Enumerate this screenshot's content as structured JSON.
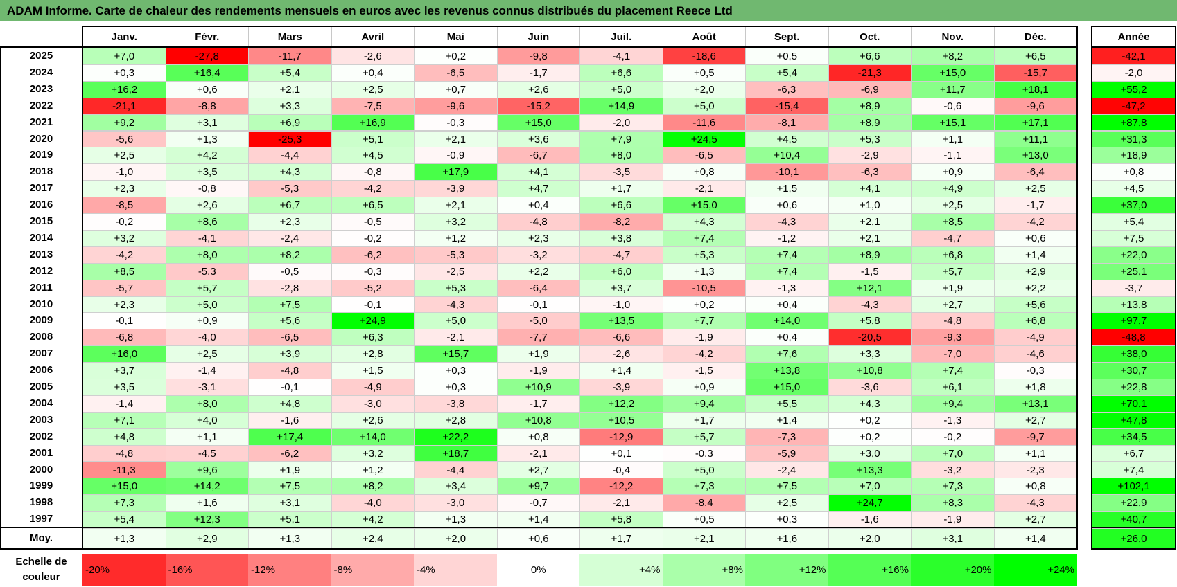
{
  "title": "ADAM Informe. Carte de chaleur des rendements mensuels en euros avec les revenus connus distribués du placement Reece Ltd",
  "chart_data": {
    "type": "heatmap",
    "columns": [
      "Janv.",
      "Févr.",
      "Mars",
      "Avril",
      "Mai",
      "Juin",
      "Juil.",
      "Août",
      "Sept.",
      "Oct.",
      "Nov.",
      "Déc."
    ],
    "annual_header": "Année",
    "rows": [
      {
        "year": "2025",
        "values": [
          "+7,0",
          "-27,8",
          "-11,7",
          "-2,6",
          "+0,2",
          "-9,8",
          "-4,1",
          "-18,6",
          "+0,5",
          "+6,6",
          "+8,2",
          "+6,5"
        ],
        "annual": "-42,1"
      },
      {
        "year": "2024",
        "values": [
          "+0,3",
          "+16,4",
          "+5,4",
          "+0,4",
          "-6,5",
          "-1,7",
          "+6,6",
          "+0,5",
          "+5,4",
          "-21,3",
          "+15,0",
          "-15,7"
        ],
        "annual": "-2,0"
      },
      {
        "year": "2023",
        "values": [
          "+16,2",
          "+0,6",
          "+2,1",
          "+2,5",
          "+0,7",
          "+2,6",
          "+5,0",
          "+2,0",
          "-6,3",
          "-6,9",
          "+11,7",
          "+18,1"
        ],
        "annual": "+55,2"
      },
      {
        "year": "2022",
        "values": [
          "-21,1",
          "-8,8",
          "+3,3",
          "-7,5",
          "-9,6",
          "-15,2",
          "+14,9",
          "+5,0",
          "-15,4",
          "+8,9",
          "-0,6",
          "-9,6"
        ],
        "annual": "-47,2"
      },
      {
        "year": "2021",
        "values": [
          "+9,2",
          "+3,1",
          "+6,9",
          "+16,9",
          "-0,3",
          "+15,0",
          "-2,0",
          "-11,6",
          "-8,1",
          "+8,9",
          "+15,1",
          "+17,1"
        ],
        "annual": "+87,8"
      },
      {
        "year": "2020",
        "values": [
          "-5,6",
          "+1,3",
          "-25,3",
          "+5,1",
          "+2,1",
          "+3,6",
          "+7,9",
          "+24,5",
          "+4,5",
          "+5,3",
          "+1,1",
          "+11,1"
        ],
        "annual": "+31,3"
      },
      {
        "year": "2019",
        "values": [
          "+2,5",
          "+4,2",
          "-4,4",
          "+4,5",
          "-0,9",
          "-6,7",
          "+8,0",
          "-6,5",
          "+10,4",
          "-2,9",
          "-1,1",
          "+13,0"
        ],
        "annual": "+18,9"
      },
      {
        "year": "2018",
        "values": [
          "-1,0",
          "+3,5",
          "+4,3",
          "-0,8",
          "+17,9",
          "+4,1",
          "-3,5",
          "+0,8",
          "-10,1",
          "-6,3",
          "+0,9",
          "-6,4"
        ],
        "annual": "+0,8"
      },
      {
        "year": "2017",
        "values": [
          "+2,3",
          "-0,8",
          "-5,3",
          "-4,2",
          "-3,9",
          "+4,7",
          "+1,7",
          "-2,1",
          "+1,5",
          "+4,1",
          "+4,9",
          "+2,5"
        ],
        "annual": "+4,5"
      },
      {
        "year": "2016",
        "values": [
          "-8,5",
          "+2,6",
          "+6,7",
          "+6,5",
          "+2,1",
          "+0,4",
          "+6,6",
          "+15,0",
          "+0,6",
          "+1,0",
          "+2,5",
          "-1,7"
        ],
        "annual": "+37,0"
      },
      {
        "year": "2015",
        "values": [
          "-0,2",
          "+8,6",
          "+2,3",
          "-0,5",
          "+3,2",
          "-4,8",
          "-8,2",
          "+4,3",
          "-4,3",
          "+2,1",
          "+8,5",
          "-4,2"
        ],
        "annual": "+5,4"
      },
      {
        "year": "2014",
        "values": [
          "+3,2",
          "-4,1",
          "-2,4",
          "-0,2",
          "+1,2",
          "+2,3",
          "+3,8",
          "+7,4",
          "-1,2",
          "+2,1",
          "-4,7",
          "+0,6"
        ],
        "annual": "+7,5"
      },
      {
        "year": "2013",
        "values": [
          "-4,2",
          "+8,0",
          "+8,2",
          "-6,2",
          "-5,3",
          "-3,2",
          "-4,7",
          "+5,3",
          "+7,4",
          "+8,9",
          "+6,8",
          "+1,4"
        ],
        "annual": "+22,0"
      },
      {
        "year": "2012",
        "values": [
          "+8,5",
          "-5,3",
          "-0,5",
          "-0,3",
          "-2,5",
          "+2,2",
          "+6,0",
          "+1,3",
          "+7,4",
          "-1,5",
          "+5,7",
          "+2,9"
        ],
        "annual": "+25,1"
      },
      {
        "year": "2011",
        "values": [
          "-5,7",
          "+5,7",
          "-2,8",
          "-5,2",
          "+5,3",
          "-6,4",
          "+3,7",
          "-10,5",
          "-1,3",
          "+12,1",
          "+1,9",
          "+2,2"
        ],
        "annual": "-3,7"
      },
      {
        "year": "2010",
        "values": [
          "+2,3",
          "+5,0",
          "+7,5",
          "-0,1",
          "-4,3",
          "-0,1",
          "-1,0",
          "+0,2",
          "+0,4",
          "-4,3",
          "+2,7",
          "+5,6"
        ],
        "annual": "+13,8"
      },
      {
        "year": "2009",
        "values": [
          "-0,1",
          "+0,9",
          "+5,6",
          "+24,9",
          "+5,0",
          "-5,0",
          "+13,5",
          "+7,7",
          "+14,0",
          "+5,8",
          "-4,8",
          "+6,8"
        ],
        "annual": "+97,7"
      },
      {
        "year": "2008",
        "values": [
          "-6,8",
          "-4,0",
          "-6,5",
          "+6,3",
          "-2,1",
          "-7,7",
          "-6,6",
          "-1,9",
          "+0,4",
          "-20,5",
          "-9,3",
          "-4,9"
        ],
        "annual": "-48,8"
      },
      {
        "year": "2007",
        "values": [
          "+16,0",
          "+2,5",
          "+3,9",
          "+2,8",
          "+15,7",
          "+1,9",
          "-2,6",
          "-4,2",
          "+7,6",
          "+3,3",
          "-7,0",
          "-4,6"
        ],
        "annual": "+38,0"
      },
      {
        "year": "2006",
        "values": [
          "+3,7",
          "-1,4",
          "-4,8",
          "+1,5",
          "+0,3",
          "-1,9",
          "+1,4",
          "-1,5",
          "+13,8",
          "+10,8",
          "+7,4",
          "-0,3"
        ],
        "annual": "+30,7"
      },
      {
        "year": "2005",
        "values": [
          "+3,5",
          "-3,1",
          "-0,1",
          "-4,9",
          "+0,3",
          "+10,9",
          "-3,9",
          "+0,9",
          "+15,0",
          "-3,6",
          "+6,1",
          "+1,8"
        ],
        "annual": "+22,8"
      },
      {
        "year": "2004",
        "values": [
          "-1,4",
          "+8,0",
          "+4,8",
          "-3,0",
          "-3,8",
          "-1,7",
          "+12,2",
          "+9,4",
          "+5,5",
          "+4,3",
          "+9,4",
          "+13,1"
        ],
        "annual": "+70,1"
      },
      {
        "year": "2003",
        "values": [
          "+7,1",
          "+4,0",
          "-1,6",
          "+2,6",
          "+2,8",
          "+10,8",
          "+10,5",
          "+1,7",
          "+1,4",
          "+0,2",
          "-1,3",
          "+2,7"
        ],
        "annual": "+47,8"
      },
      {
        "year": "2002",
        "values": [
          "+4,8",
          "+1,1",
          "+17,4",
          "+14,0",
          "+22,2",
          "+0,8",
          "-12,9",
          "+5,7",
          "-7,3",
          "+0,2",
          "-0,2",
          "-9,7"
        ],
        "annual": "+34,5"
      },
      {
        "year": "2001",
        "values": [
          "-4,8",
          "-4,5",
          "-6,2",
          "+3,2",
          "+18,7",
          "-2,1",
          "+0,1",
          "-0,3",
          "-5,9",
          "+3,0",
          "+7,0",
          "+1,1"
        ],
        "annual": "+6,7"
      },
      {
        "year": "2000",
        "values": [
          "-11,3",
          "+9,6",
          "+1,9",
          "+1,2",
          "-4,4",
          "+2,7",
          "-0,4",
          "+5,0",
          "-2,4",
          "+13,3",
          "-3,2",
          "-2,3"
        ],
        "annual": "+7,4"
      },
      {
        "year": "1999",
        "values": [
          "+15,0",
          "+14,2",
          "+7,5",
          "+8,2",
          "+3,4",
          "+9,7",
          "-12,2",
          "+7,3",
          "+7,5",
          "+7,0",
          "+7,3",
          "+0,8"
        ],
        "annual": "+102,1"
      },
      {
        "year": "1998",
        "values": [
          "+7,3",
          "+1,6",
          "+3,1",
          "-4,0",
          "-3,0",
          "-0,7",
          "-2,1",
          "-8,4",
          "+2,5",
          "+24,7",
          "+8,3",
          "-4,3"
        ],
        "annual": "+22,9"
      },
      {
        "year": "1997",
        "values": [
          "+5,4",
          "+12,3",
          "+5,1",
          "+4,2",
          "+1,3",
          "+1,4",
          "+5,8",
          "+0,5",
          "+0,3",
          "-1,6",
          "-1,9",
          "+2,7"
        ],
        "annual": "+40,7"
      }
    ],
    "average": {
      "label": "Moy.",
      "values": [
        "+1,3",
        "+2,9",
        "+1,3",
        "+2,4",
        "+2,0",
        "+0,6",
        "+1,7",
        "+2,1",
        "+1,6",
        "+2,0",
        "+3,1",
        "+1,4"
      ],
      "annual": "+26,0"
    },
    "scale": {
      "label": "Echelle de couleur",
      "stops": [
        "-20%",
        "-16%",
        "-12%",
        "-8%",
        "-4%",
        "0%",
        "+4%",
        "+8%",
        "+12%",
        "+16%",
        "+20%",
        "+24%"
      ],
      "stop_values": [
        -20,
        -16,
        -12,
        -8,
        -4,
        0,
        4,
        8,
        12,
        16,
        20,
        24
      ]
    },
    "colors": {
      "negative_max": "#ff0000",
      "neutral": "#ffffff",
      "positive_max": "#00ff00"
    }
  }
}
